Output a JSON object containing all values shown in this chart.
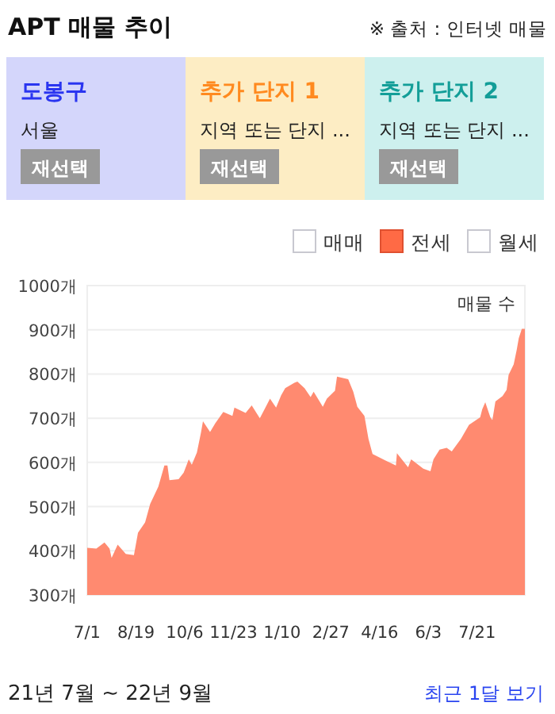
{
  "chart_data": {
    "type": "area",
    "title": "APT 매물 추이",
    "ylabel": "매물 수",
    "annotations": [
      "※ 출처 : 인터넷 매물",
      "도봉구",
      "서울",
      "재선택",
      "추가 단지 1",
      "지역 또는 단지 ...",
      "재선택",
      "추가 단지 2",
      "지역 또는 단지 ...",
      "재선택",
      "매매",
      "월세",
      "21년 7월 ~ 22년 9월",
      "최근 1달 보기"
    ],
    "x": [
      "2021-07-01",
      "2021-07-10",
      "2021-07-18",
      "2021-07-23",
      "2021-07-25",
      "2021-07-31",
      "2021-08-08",
      "2021-08-16",
      "2021-08-20",
      "2021-08-27",
      "2021-09-01",
      "2021-09-09",
      "2021-09-15",
      "2021-09-18",
      "2021-09-20",
      "2021-09-29",
      "2021-10-04",
      "2021-10-09",
      "2021-10-12",
      "2021-10-17",
      "2021-10-21",
      "2021-10-23",
      "2021-10-30",
      "2021-11-04",
      "2021-11-12",
      "2021-11-21",
      "2021-11-23",
      "2021-12-04",
      "2021-12-10",
      "2021-12-18",
      "2021-12-28",
      "2022-01-03",
      "2022-01-08",
      "2022-01-12",
      "2022-01-21",
      "2022-01-24",
      "2022-01-31",
      "2022-02-06",
      "2022-02-09",
      "2022-02-18",
      "2022-02-22",
      "2022-03-02",
      "2022-03-04",
      "2022-03-15",
      "2022-03-20",
      "2022-03-24",
      "2022-03-31",
      "2022-04-04",
      "2022-04-08",
      "2022-04-20",
      "2022-05-01",
      "2022-05-02",
      "2022-05-13",
      "2022-05-16",
      "2022-05-28",
      "2022-06-04",
      "2022-06-07",
      "2022-06-13",
      "2022-06-20",
      "2022-06-25",
      "2022-07-04",
      "2022-07-12",
      "2022-07-23",
      "2022-07-25",
      "2022-07-28",
      "2022-08-02",
      "2022-08-04",
      "2022-08-07",
      "2022-08-14",
      "2022-08-18",
      "2022-08-20",
      "2022-08-25",
      "2022-08-28",
      "2022-08-30",
      "2022-09-02",
      "2022-09-05"
    ],
    "series": [
      {
        "name": "전세",
        "color": "#ff8a70",
        "values": [
          407,
          405,
          419,
          405,
          384,
          414,
          393,
          390,
          441,
          464,
          506,
          545,
          593,
          593,
          560,
          562,
          577,
          607,
          595,
          622,
          667,
          693,
          669,
          688,
          714,
          705,
          724,
          712,
          729,
          700,
          744,
          724,
          752,
          768,
          780,
          783,
          768,
          748,
          760,
          726,
          744,
          762,
          794,
          788,
          760,
          726,
          705,
          653,
          619,
          605,
          593,
          621,
          589,
          607,
          586,
          580,
          607,
          629,
          633,
          625,
          653,
          685,
          702,
          720,
          736,
          702,
          696,
          738,
          750,
          764,
          798,
          822,
          855,
          881,
          902,
          902
        ]
      }
    ],
    "xlim": [
      "2021-07-01",
      "2022-09-05"
    ],
    "xticks": [
      {
        "value": "2021-07-01",
        "label": "7/1"
      },
      {
        "value": "2021-08-18",
        "label": "8/19"
      },
      {
        "value": "2021-10-05",
        "label": "10/6"
      },
      {
        "value": "2021-11-22",
        "label": "11/23"
      },
      {
        "value": "2022-01-09",
        "label": "1/10"
      },
      {
        "value": "2022-02-26",
        "label": "2/27"
      },
      {
        "value": "2022-04-15",
        "label": "4/16"
      },
      {
        "value": "2022-06-02",
        "label": "6/3"
      },
      {
        "value": "2022-07-20",
        "label": "7/21"
      }
    ],
    "ylim": [
      300,
      1000
    ],
    "yticks": [
      {
        "value": 300,
        "label": "300개"
      },
      {
        "value": 400,
        "label": "400개"
      },
      {
        "value": 500,
        "label": "500개"
      },
      {
        "value": 600,
        "label": "600개"
      },
      {
        "value": 700,
        "label": "700개"
      },
      {
        "value": 800,
        "label": "800개"
      },
      {
        "value": 900,
        "label": "900개"
      },
      {
        "value": 1000,
        "label": "1000개"
      }
    ],
    "grid": "y",
    "legend": "top right"
  }
}
